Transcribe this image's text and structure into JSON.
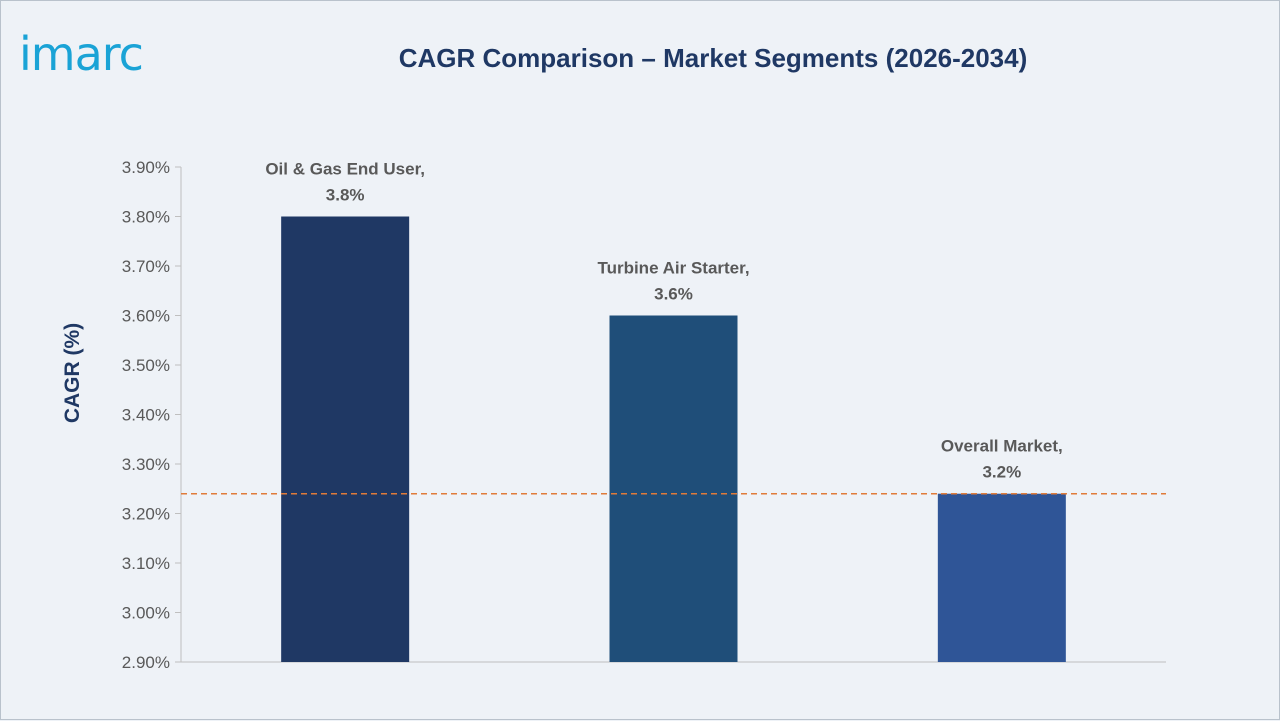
{
  "logo": {
    "text": "imarc"
  },
  "chart_data": {
    "type": "bar",
    "title": "CAGR Comparison – Market Segments (2026-2034)",
    "ylabel": "CAGR (%)",
    "xlabel": "",
    "categories": [
      "Oil & Gas End User",
      "Turbine Air Starter",
      "Overall Market"
    ],
    "values": [
      3.8,
      3.6,
      3.24
    ],
    "data_labels": [
      [
        "Oil & Gas End User,",
        "3.8%"
      ],
      [
        "Turbine Air Starter,",
        "3.6%"
      ],
      [
        "Overall Market,",
        "3.2%"
      ]
    ],
    "ylim": [
      2.9,
      3.9
    ],
    "yticks": [
      2.9,
      3.0,
      3.1,
      3.2,
      3.3,
      3.4,
      3.5,
      3.6,
      3.7,
      3.8,
      3.9
    ],
    "ytick_labels": [
      "2.90%",
      "3.00%",
      "3.10%",
      "3.20%",
      "3.30%",
      "3.40%",
      "3.50%",
      "3.60%",
      "3.70%",
      "3.80%",
      "3.90%"
    ],
    "reference_line": {
      "value": 3.24,
      "style": "dashed",
      "color": "#e07b39"
    },
    "bar_colors": [
      "#1f3864",
      "#1f4e79",
      "#2f5597"
    ],
    "grid": false,
    "legend": "none"
  }
}
